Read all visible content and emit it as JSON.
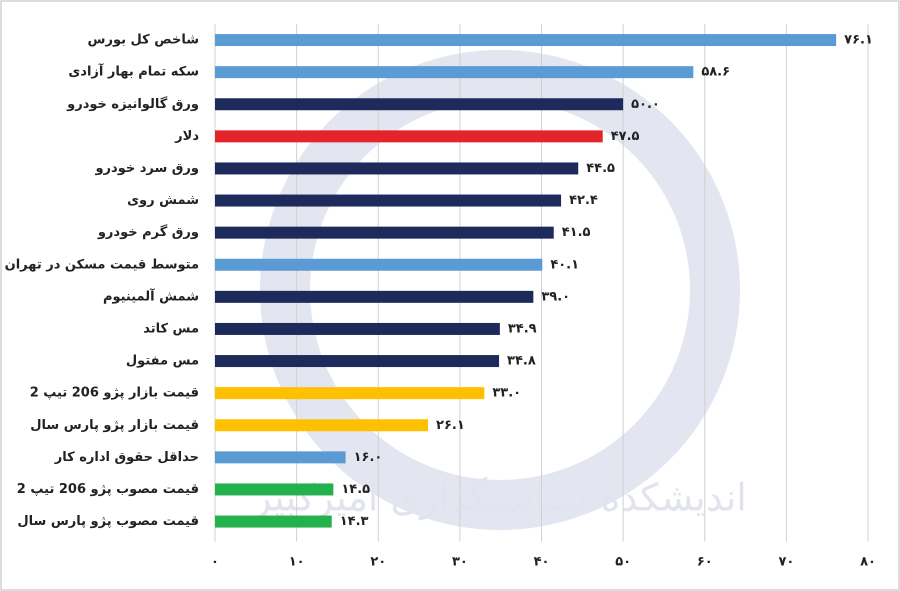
{
  "chart_data": {
    "type": "hbar",
    "watermark": "اندیشکده سیاستگذاری امیرکبیر",
    "categories": [
      "شاخص کل بورس",
      "سکه تمام بهار آزادی",
      "ورق گالوانیزه خودرو",
      "دلار",
      "ورق سرد خودرو",
      "شمش روی",
      "ورق گرم خودرو",
      "متوسط قیمت مسکن در تهران",
      "شمش آلمینیوم",
      "مس کاتد",
      "مس مفتول",
      "قیمت بازار پژو 206 تیپ 2",
      "قیمت بازار پژو پارس سال",
      "حداقل حقوق اداره کار",
      "قیمت مصوب پژو 206 تیپ 2",
      "قیمت مصوب پژو پارس سال"
    ],
    "values": [
      76.1,
      58.6,
      50.0,
      47.5,
      44.5,
      42.4,
      41.5,
      40.1,
      39.0,
      34.9,
      34.8,
      33.0,
      26.1,
      16.0,
      14.5,
      14.3
    ],
    "value_labels": [
      "۷۶.۱",
      "۵۸.۶",
      "۵۰.۰",
      "۴۷.۵",
      "۴۴.۵",
      "۴۲.۴",
      "۴۱.۵",
      "۴۰.۱",
      "۳۹.۰",
      "۳۴.۹",
      "۳۴.۸",
      "۳۳.۰",
      "۲۶.۱",
      "۱۶.۰",
      "۱۴.۵",
      "۱۴.۳"
    ],
    "colors": [
      "#5b9bd5",
      "#5b9bd5",
      "#1f2a5c",
      "#e3242b",
      "#1f2a5c",
      "#1f2a5c",
      "#1f2a5c",
      "#5b9bd5",
      "#1f2a5c",
      "#1f2a5c",
      "#1f2a5c",
      "#ffc000",
      "#ffc000",
      "#5b9bd5",
      "#22b14c",
      "#22b14c"
    ],
    "xlim": [
      0,
      80
    ],
    "xticks": [
      {
        "value": 0,
        "label": "۰"
      },
      {
        "value": 10,
        "label": "۱۰"
      },
      {
        "value": 20,
        "label": "۲۰"
      },
      {
        "value": 30,
        "label": "۳۰"
      },
      {
        "value": 40,
        "label": "۴۰"
      },
      {
        "value": 50,
        "label": "۵۰"
      },
      {
        "value": 60,
        "label": "۶۰"
      },
      {
        "value": 70,
        "label": "۷۰"
      },
      {
        "value": 80,
        "label": "۸۰"
      }
    ],
    "grid": true
  }
}
